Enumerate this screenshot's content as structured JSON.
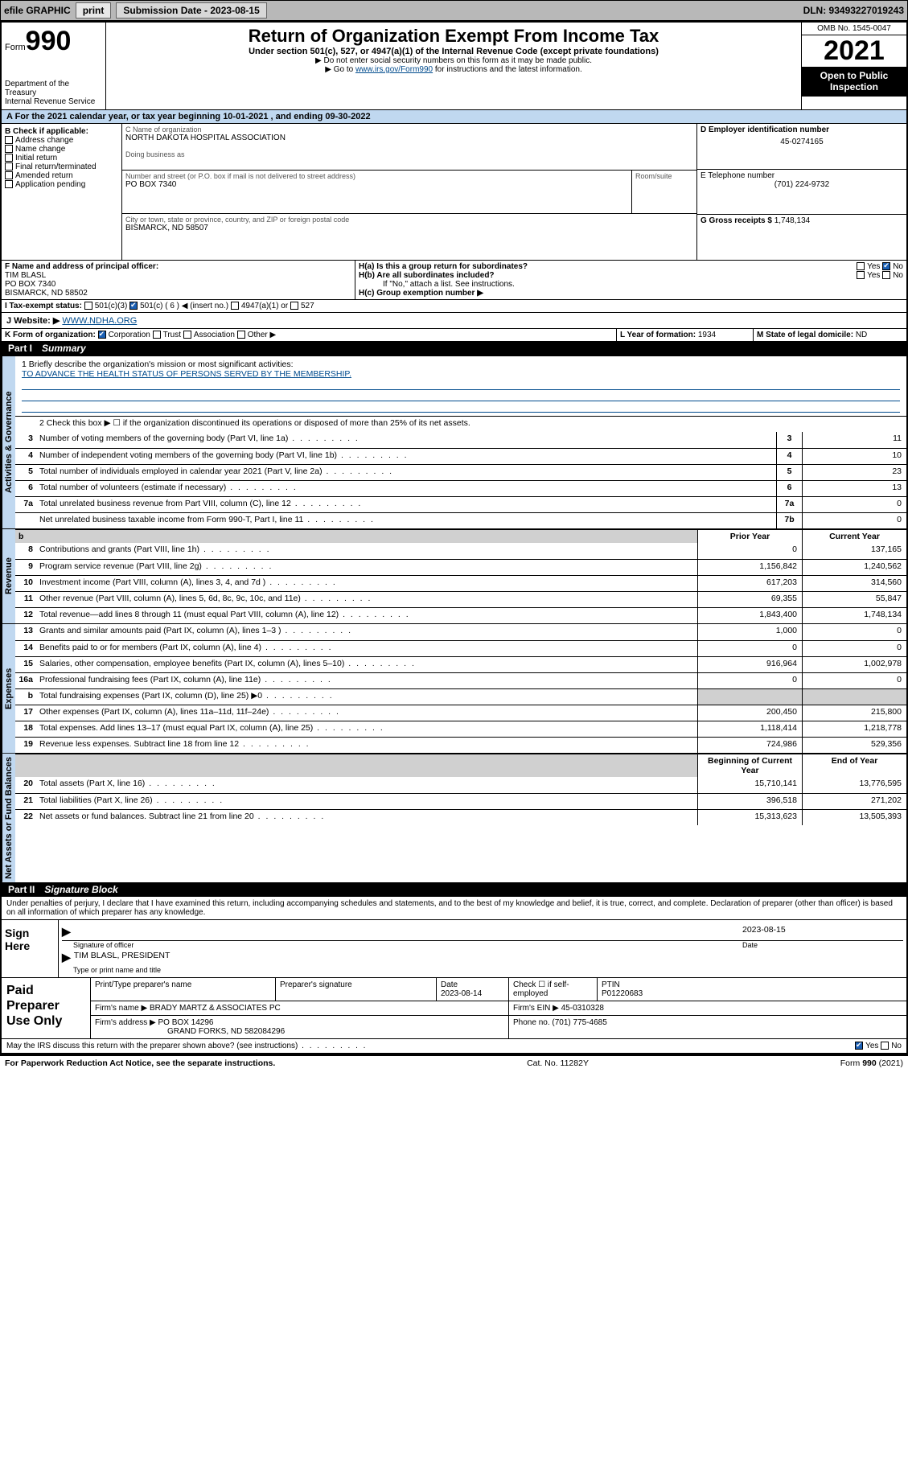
{
  "topbar": {
    "efile_label": "efile GRAPHIC",
    "print_btn": "print",
    "submission_label": "Submission Date - 2023-08-15",
    "dln_label": "DLN: 93493227019243"
  },
  "header": {
    "form_prefix": "Form",
    "form_num": "990",
    "dept": "Department of the Treasury",
    "irs": "Internal Revenue Service",
    "title": "Return of Organization Exempt From Income Tax",
    "sub": "Under section 501(c), 527, or 4947(a)(1) of the Internal Revenue Code (except private foundations)",
    "note1": "▶ Do not enter social security numbers on this form as it may be made public.",
    "note2_pre": "▶ Go to ",
    "note2_link": "www.irs.gov/Form990",
    "note2_post": " for instructions and the latest information.",
    "omb": "OMB No. 1545-0047",
    "year": "2021",
    "open_pub": "Open to Public Inspection"
  },
  "period": "A For the 2021 calendar year, or tax year beginning 10-01-2021   , and ending 09-30-2022",
  "box_b": {
    "heading": "B Check if applicable:",
    "items": [
      "Address change",
      "Name change",
      "Initial return",
      "Final return/terminated",
      "Amended return",
      "Application pending"
    ]
  },
  "box_c": {
    "name_label": "C Name of organization",
    "name": "NORTH DAKOTA HOSPITAL ASSOCIATION",
    "dba_label": "Doing business as",
    "street_label": "Number and street (or P.O. box if mail is not delivered to street address)",
    "room_label": "Room/suite",
    "street": "PO BOX 7340",
    "city_label": "City or town, state or province, country, and ZIP or foreign postal code",
    "city": "BISMARCK, ND  58507"
  },
  "box_d": {
    "label": "D Employer identification number",
    "value": "45-0274165"
  },
  "box_e": {
    "label": "E Telephone number",
    "value": "(701) 224-9732"
  },
  "box_g": {
    "label": "G Gross receipts $",
    "value": "1,748,134"
  },
  "box_f": {
    "label": "F Name and address of principal officer:",
    "name": "TIM BLASL",
    "addr1": "PO BOX 7340",
    "addr2": "BISMARCK, ND  58502"
  },
  "box_h": {
    "ha": "H(a)  Is this a group return for subordinates?",
    "hb": "H(b)  Are all subordinates included?",
    "hb_note": "If \"No,\" attach a list. See instructions.",
    "hc": "H(c)  Group exemption number ▶",
    "yes": "Yes",
    "no": "No"
  },
  "box_i": {
    "label": "I   Tax-exempt status:",
    "o1": "501(c)(3)",
    "o2": "501(c) ( 6 ) ◀ (insert no.)",
    "o3": "4947(a)(1) or",
    "o4": "527"
  },
  "box_j": {
    "label": "J   Website: ▶",
    "value": "WWW.NDHA.ORG"
  },
  "box_k": {
    "label": "K Form of organization:",
    "o1": "Corporation",
    "o2": "Trust",
    "o3": "Association",
    "o4": "Other ▶"
  },
  "box_l": {
    "label": "L Year of formation:",
    "value": "1934"
  },
  "box_m": {
    "label": "M State of legal domicile:",
    "value": "ND"
  },
  "part1": {
    "label": "Part I",
    "title": "Summary"
  },
  "mission": {
    "q": "1  Briefly describe the organization's mission or most significant activities:",
    "text": "TO ADVANCE THE HEALTH STATUS OF PERSONS SERVED BY THE MEMBERSHIP."
  },
  "line2": "2   Check this box ▶ ☐  if the organization discontinued its operations or disposed of more than 25% of its net assets.",
  "gov_rows": [
    {
      "n": "3",
      "d": "Number of voting members of the governing body (Part VI, line 1a)",
      "box": "3",
      "v": "11"
    },
    {
      "n": "4",
      "d": "Number of independent voting members of the governing body (Part VI, line 1b)",
      "box": "4",
      "v": "10"
    },
    {
      "n": "5",
      "d": "Total number of individuals employed in calendar year 2021 (Part V, line 2a)",
      "box": "5",
      "v": "23"
    },
    {
      "n": "6",
      "d": "Total number of volunteers (estimate if necessary)",
      "box": "6",
      "v": "13"
    },
    {
      "n": "7a",
      "d": "Total unrelated business revenue from Part VIII, column (C), line 12",
      "box": "7a",
      "v": "0"
    },
    {
      "n": "",
      "d": "Net unrelated business taxable income from Form 990-T, Part I, line 11",
      "box": "7b",
      "v": "0"
    }
  ],
  "col_headers": {
    "prior": "Prior Year",
    "current": "Current Year",
    "boy": "Beginning of Current Year",
    "eoy": "End of Year"
  },
  "rev_rows": [
    {
      "n": "8",
      "d": "Contributions and grants (Part VIII, line 1h)",
      "p": "0",
      "c": "137,165"
    },
    {
      "n": "9",
      "d": "Program service revenue (Part VIII, line 2g)",
      "p": "1,156,842",
      "c": "1,240,562"
    },
    {
      "n": "10",
      "d": "Investment income (Part VIII, column (A), lines 3, 4, and 7d )",
      "p": "617,203",
      "c": "314,560"
    },
    {
      "n": "11",
      "d": "Other revenue (Part VIII, column (A), lines 5, 6d, 8c, 9c, 10c, and 11e)",
      "p": "69,355",
      "c": "55,847"
    },
    {
      "n": "12",
      "d": "Total revenue—add lines 8 through 11 (must equal Part VIII, column (A), line 12)",
      "p": "1,843,400",
      "c": "1,748,134"
    }
  ],
  "exp_rows": [
    {
      "n": "13",
      "d": "Grants and similar amounts paid (Part IX, column (A), lines 1–3 )",
      "p": "1,000",
      "c": "0"
    },
    {
      "n": "14",
      "d": "Benefits paid to or for members (Part IX, column (A), line 4)",
      "p": "0",
      "c": "0"
    },
    {
      "n": "15",
      "d": "Salaries, other compensation, employee benefits (Part IX, column (A), lines 5–10)",
      "p": "916,964",
      "c": "1,002,978"
    },
    {
      "n": "16a",
      "d": "Professional fundraising fees (Part IX, column (A), line 11e)",
      "p": "0",
      "c": "0"
    },
    {
      "n": "b",
      "d": "Total fundraising expenses (Part IX, column (D), line 25) ▶0",
      "p": "",
      "c": "",
      "shade": true
    },
    {
      "n": "17",
      "d": "Other expenses (Part IX, column (A), lines 11a–11d, 11f–24e)",
      "p": "200,450",
      "c": "215,800"
    },
    {
      "n": "18",
      "d": "Total expenses. Add lines 13–17 (must equal Part IX, column (A), line 25)",
      "p": "1,118,414",
      "c": "1,218,778"
    },
    {
      "n": "19",
      "d": "Revenue less expenses. Subtract line 18 from line 12",
      "p": "724,986",
      "c": "529,356"
    }
  ],
  "na_rows": [
    {
      "n": "20",
      "d": "Total assets (Part X, line 16)",
      "p": "15,710,141",
      "c": "13,776,595"
    },
    {
      "n": "21",
      "d": "Total liabilities (Part X, line 26)",
      "p": "396,518",
      "c": "271,202"
    },
    {
      "n": "22",
      "d": "Net assets or fund balances. Subtract line 21 from line 20",
      "p": "15,313,623",
      "c": "13,505,393"
    }
  ],
  "vtabs": {
    "gov": "Activities & Governance",
    "rev": "Revenue",
    "exp": "Expenses",
    "na": "Net Assets or Fund Balances"
  },
  "part2": {
    "label": "Part II",
    "title": "Signature Block"
  },
  "penalty": "Under penalties of perjury, I declare that I have examined this return, including accompanying schedules and statements, and to the best of my knowledge and belief, it is true, correct, and complete. Declaration of preparer (other than officer) is based on all information of which preparer has any knowledge.",
  "sign": {
    "here": "Sign Here",
    "sig_label": "Signature of officer",
    "date": "2023-08-15",
    "date_label": "Date",
    "name": "TIM BLASL, PRESIDENT",
    "name_label": "Type or print name and title"
  },
  "prep": {
    "title": "Paid Preparer Use Only",
    "h1": "Print/Type preparer's name",
    "h2": "Preparer's signature",
    "h3": "Date",
    "h3v": "2023-08-14",
    "h4": "Check ☐ if self-employed",
    "h5": "PTIN",
    "h5v": "P01220683",
    "firm_label": "Firm's name    ▶",
    "firm": "BRADY MARTZ & ASSOCIATES PC",
    "ein_label": "Firm's EIN ▶",
    "ein": "45-0310328",
    "addr_label": "Firm's address ▶",
    "addr1": "PO BOX 14296",
    "addr2": "GRAND FORKS, ND  582084296",
    "phone_label": "Phone no.",
    "phone": "(701) 775-4685"
  },
  "may_irs": "May the IRS discuss this return with the preparer shown above? (see instructions)",
  "footer": {
    "left": "For Paperwork Reduction Act Notice, see the separate instructions.",
    "mid": "Cat. No. 11282Y",
    "right": "Form 990 (2021)"
  }
}
